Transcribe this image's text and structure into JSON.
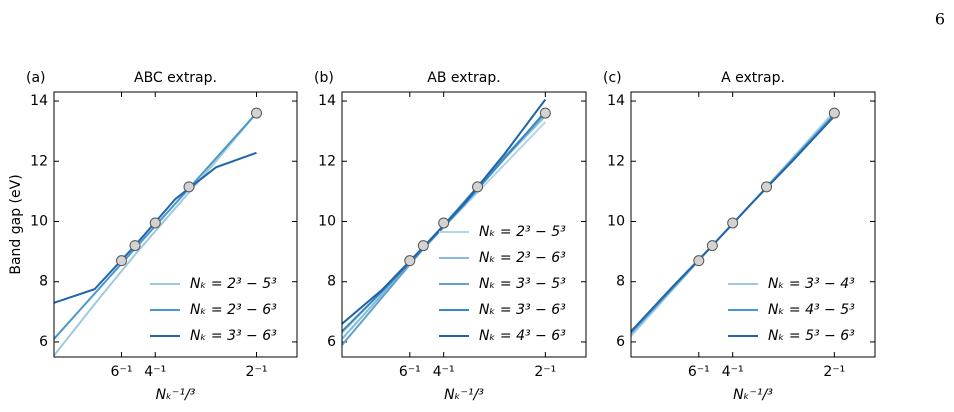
{
  "page_number": "6",
  "chart_data": [
    {
      "type": "line",
      "label": "(a)",
      "title": "ABC extrap.",
      "ylabel": "Band gap (eV)",
      "xlabel": "Nₖ⁻¹/³",
      "xlim": [
        0,
        0.6
      ],
      "ylim": [
        5.5,
        14.3
      ],
      "xticks": [
        {
          "value": 0.1667,
          "label": "6⁻¹"
        },
        {
          "value": 0.25,
          "label": "4⁻¹"
        },
        {
          "value": 0.5,
          "label": "2⁻¹"
        }
      ],
      "yticks": [
        6,
        8,
        10,
        12,
        14
      ],
      "legend": "lower right",
      "x": [
        0,
        0.1,
        0.2,
        0.3,
        0.4,
        0.5
      ],
      "series": [
        {
          "name": "Nₖ = 2³ − 5³",
          "color": "#9ecae1",
          "values": [
            5.55,
            7.25,
            8.9,
            10.45,
            12.0,
            13.6
          ]
        },
        {
          "name": "Nₖ = 2³ − 6³",
          "color": "#4a98c9",
          "values": [
            6.1,
            7.6,
            9.1,
            10.6,
            12.1,
            13.6
          ]
        },
        {
          "name": "Nₖ = 3³ − 6³",
          "color": "#2166ac",
          "values": [
            7.3,
            7.75,
            9.2,
            10.75,
            11.8,
            12.28
          ]
        }
      ],
      "markers": {
        "x": [
          0.1667,
          0.2,
          0.25,
          0.3333,
          0.5
        ],
        "values": [
          8.7,
          9.2,
          9.95,
          11.15,
          13.6
        ],
        "color": "#d3d3d3"
      }
    },
    {
      "type": "line",
      "label": "(b)",
      "title": "AB extrap.",
      "xlabel": "Nₖ⁻¹/³",
      "xlim": [
        0,
        0.6
      ],
      "ylim": [
        5.5,
        14.3
      ],
      "xticks": [
        {
          "value": 0.1667,
          "label": "6⁻¹"
        },
        {
          "value": 0.25,
          "label": "4⁻¹"
        },
        {
          "value": 0.5,
          "label": "2⁻¹"
        }
      ],
      "yticks": [
        6,
        8,
        10,
        12,
        14
      ],
      "legend": "lower right",
      "x": [
        0,
        0.1,
        0.2,
        0.3,
        0.4,
        0.5
      ],
      "series": [
        {
          "name": "Nₖ = 2³ − 5³",
          "color": "#b3d5ea",
          "values": [
            6.3,
            7.7,
            9.1,
            10.5,
            11.9,
            13.3
          ]
        },
        {
          "name": "Nₖ = 2³ − 6³",
          "color": "#84bcdb",
          "values": [
            6.1,
            7.6,
            9.1,
            10.6,
            12.1,
            13.5
          ]
        },
        {
          "name": "Nₖ = 3³ − 5³",
          "color": "#5fa2cf",
          "values": [
            5.9,
            7.5,
            9.1,
            10.65,
            12.15,
            13.6
          ]
        },
        {
          "name": "Nₖ = 3³ − 6³",
          "color": "#3a86be",
          "values": [
            6.35,
            7.7,
            9.1,
            10.55,
            12.1,
            13.65
          ]
        },
        {
          "name": "Nₖ = 4³ − 6³",
          "color": "#1f64a8",
          "values": [
            6.6,
            7.75,
            9.15,
            10.6,
            12.25,
            14.05
          ]
        }
      ],
      "markers": {
        "x": [
          0.1667,
          0.2,
          0.25,
          0.3333,
          0.5
        ],
        "values": [
          8.7,
          9.2,
          9.95,
          11.15,
          13.6
        ],
        "color": "#d3d3d3"
      }
    },
    {
      "type": "line",
      "label": "(c)",
      "title": "A extrap.",
      "xlabel": "Nₖ⁻¹/³",
      "xlim": [
        0,
        0.6
      ],
      "ylim": [
        5.5,
        14.3
      ],
      "xticks": [
        {
          "value": 0.1667,
          "label": "6⁻¹"
        },
        {
          "value": 0.25,
          "label": "4⁻¹"
        },
        {
          "value": 0.5,
          "label": "2⁻¹"
        }
      ],
      "yticks": [
        6,
        8,
        10,
        12,
        14
      ],
      "legend": "lower right",
      "x": [
        0,
        0.1,
        0.2,
        0.3,
        0.4,
        0.5
      ],
      "series": [
        {
          "name": "Nₖ = 3³ − 4³",
          "color": "#9ecae1",
          "values": [
            6.2,
            7.7,
            9.2,
            10.65,
            12.15,
            13.65
          ]
        },
        {
          "name": "Nₖ = 4³ − 5³",
          "color": "#4a98c9",
          "values": [
            6.3,
            7.75,
            9.2,
            10.65,
            12.1,
            13.55
          ]
        },
        {
          "name": "Nₖ = 5³ − 6³",
          "color": "#2166ac",
          "values": [
            6.35,
            7.8,
            9.2,
            10.65,
            12.05,
            13.5
          ]
        }
      ],
      "markers": {
        "x": [
          0.1667,
          0.2,
          0.25,
          0.3333,
          0.5
        ],
        "values": [
          8.7,
          9.2,
          9.95,
          11.15,
          13.6
        ],
        "color": "#d3d3d3"
      }
    }
  ]
}
